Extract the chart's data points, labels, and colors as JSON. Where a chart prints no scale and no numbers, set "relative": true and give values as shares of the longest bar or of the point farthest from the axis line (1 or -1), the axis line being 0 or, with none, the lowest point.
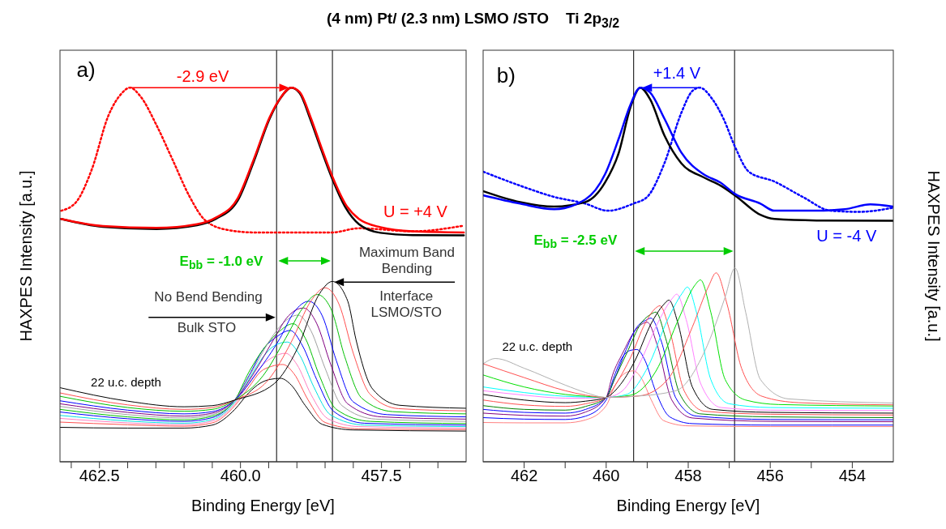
{
  "chart_data": [
    {
      "type": "line",
      "title": "(4 nm) Pt/ (2.3 nm) LSMO /STO    Ti 2p$_{3/2}$",
      "xlabel": "Binding Energy [eV]",
      "ylabel": "HAXPES Intensity [a.u.]",
      "relative": true,
      "tick_labels": "x",
      "xlim": [
        463.2,
        456.0
      ],
      "xticks": [
        {
          "value": 463.0,
          "label": null
        },
        {
          "value": 462.5,
          "label": "462.5"
        },
        {
          "value": 462.0,
          "label": null
        },
        {
          "value": 461.5,
          "label": null
        },
        {
          "value": 461.0,
          "label": null
        },
        {
          "value": 460.5,
          "label": null
        },
        {
          "value": 460.0,
          "label": "460.0"
        },
        {
          "value": 459.5,
          "label": null
        },
        {
          "value": 459.0,
          "label": null
        },
        {
          "value": 458.5,
          "label": null
        },
        {
          "value": 458.0,
          "label": null
        },
        {
          "value": 457.5,
          "label": "457.5"
        },
        {
          "value": 457.0,
          "label": null
        },
        {
          "value": 456.5,
          "label": null
        }
      ],
      "ref_lines": [
        {
          "axis": "x",
          "value": 459.36,
          "color": "#000000"
        },
        {
          "axis": "x",
          "value": 458.37,
          "color": "#000000"
        }
      ],
      "annotations": [
        "a)",
        "-2.9 eV",
        "U = +4 V",
        "E$_{bb}$ = -1.0 eV",
        "Maximum Band Bending",
        "Interface LSMO/STO",
        "No Bend Bending",
        "Bulk STO",
        "22 u.c. depth"
      ],
      "series": [
        {
          "color": "#ff0000",
          "x": [
            463.18,
            462.44,
            461.49,
            460.77,
            460.43,
            460.05,
            459.77,
            459.48,
            459.29,
            459.1,
            458.95,
            458.76,
            458.57,
            458.37,
            458.14,
            457.9,
            457.52,
            456.95,
            456.04
          ],
          "values": [
            0.649,
            0.63,
            0.625,
            0.635,
            0.653,
            0.704,
            0.806,
            0.922,
            0.973,
            1.0,
            0.988,
            0.922,
            0.842,
            0.762,
            0.689,
            0.649,
            0.627,
            0.616,
            0.613
          ]
        },
        {
          "color": "#000000",
          "x": [
            463.18,
            462.44,
            461.49,
            460.77,
            460.43,
            460.05,
            459.77,
            459.48,
            459.29,
            459.1,
            458.95,
            458.76,
            458.57,
            458.37,
            458.14,
            457.9,
            457.52,
            456.95,
            456.04
          ],
          "values": [
            0.649,
            0.628,
            0.622,
            0.632,
            0.65,
            0.698,
            0.8,
            0.918,
            0.972,
            1.0,
            0.985,
            0.915,
            0.835,
            0.755,
            0.68,
            0.635,
            0.612,
            0.606,
            0.605
          ]
        },
        {
          "color": "#ff0000",
          "line_style": "dotted",
          "x": [
            463.18,
            462.92,
            462.63,
            462.35,
            462.11,
            461.96,
            461.77,
            461.49,
            461.2,
            460.91,
            460.63,
            460.24,
            459.77,
            459.1,
            458.38,
            457.9,
            456.95,
            456.04
          ],
          "values": [
            0.671,
            0.693,
            0.784,
            0.922,
            0.984,
            1.0,
            0.976,
            0.9,
            0.806,
            0.711,
            0.646,
            0.62,
            0.613,
            0.613,
            0.613,
            0.624,
            0.616,
            0.631
          ]
        },
        {
          "color": "#000000",
          "x": [
            463.2,
            462,
            461,
            460.5,
            460.1,
            459.4,
            459.0,
            458.6,
            458.37,
            458.1,
            457.95,
            457.66,
            457.18,
            456.0
          ],
          "values": [
            0.198,
            0.162,
            0.147,
            0.15,
            0.165,
            0.209,
            0.3,
            0.449,
            0.482,
            0.43,
            0.325,
            0.195,
            0.151,
            0.143
          ]
        },
        {
          "color": "#ff5050",
          "x": [
            463.2,
            462,
            461,
            460.5,
            460.1,
            459.5,
            459.1,
            458.75,
            458.5,
            458.25,
            458.0,
            457.7,
            457.2,
            456.0
          ],
          "values": [
            0.184,
            0.152,
            0.14,
            0.145,
            0.165,
            0.22,
            0.32,
            0.43,
            0.465,
            0.42,
            0.29,
            0.18,
            0.142,
            0.136
          ]
        },
        {
          "color": "#00c000",
          "x": [
            463.2,
            462,
            461,
            460.5,
            460.1,
            459.6,
            459.2,
            458.9,
            458.64,
            458.4,
            458.15,
            457.85,
            457.3,
            456.0
          ],
          "values": [
            0.175,
            0.145,
            0.135,
            0.14,
            0.165,
            0.23,
            0.33,
            0.41,
            0.447,
            0.41,
            0.28,
            0.17,
            0.134,
            0.128
          ]
        },
        {
          "color": "#0000ff",
          "x": [
            463.2,
            462,
            461,
            460.5,
            460.1,
            459.7,
            459.3,
            459.05,
            458.79,
            458.55,
            458.3,
            458.0,
            457.4,
            456.0
          ],
          "values": [
            0.163,
            0.138,
            0.128,
            0.134,
            0.165,
            0.24,
            0.33,
            0.4,
            0.429,
            0.39,
            0.27,
            0.16,
            0.126,
            0.12
          ]
        },
        {
          "color": "#800080",
          "x": [
            463.2,
            462,
            461,
            460.5,
            460.1,
            459.75,
            459.4,
            459.15,
            458.88,
            458.65,
            458.4,
            458.1,
            457.5,
            456.0
          ],
          "values": [
            0.155,
            0.132,
            0.122,
            0.13,
            0.165,
            0.24,
            0.33,
            0.39,
            0.411,
            0.37,
            0.26,
            0.155,
            0.12,
            0.114
          ]
        },
        {
          "color": "#a0a0a0",
          "x": [
            463.2,
            462,
            461,
            460.5,
            460.1,
            459.8,
            459.5,
            459.25,
            458.98,
            458.75,
            458.5,
            458.2,
            457.6,
            456.0
          ],
          "values": [
            0.148,
            0.126,
            0.117,
            0.126,
            0.165,
            0.24,
            0.32,
            0.37,
            0.392,
            0.35,
            0.25,
            0.15,
            0.114,
            0.108
          ]
        },
        {
          "color": "#00c000",
          "x": [
            463.2,
            462,
            461,
            460.5,
            460.1,
            459.85,
            459.55,
            459.3,
            459.07,
            458.85,
            458.6,
            458.3,
            457.7,
            456.0
          ],
          "values": [
            0.14,
            0.12,
            0.112,
            0.122,
            0.165,
            0.24,
            0.31,
            0.35,
            0.369,
            0.33,
            0.23,
            0.14,
            0.108,
            0.102
          ]
        },
        {
          "color": "#0000ff",
          "x": [
            463.2,
            462,
            461,
            460.5,
            460.1,
            459.85,
            459.6,
            459.35,
            459.12,
            458.9,
            458.65,
            458.35,
            457.8,
            456.0
          ],
          "values": [
            0.133,
            0.115,
            0.108,
            0.118,
            0.165,
            0.23,
            0.3,
            0.335,
            0.351,
            0.31,
            0.22,
            0.135,
            0.103,
            0.098
          ]
        },
        {
          "color": "#00e0e0",
          "x": [
            463.2,
            462,
            461,
            460.5,
            460.1,
            459.85,
            459.6,
            459.4,
            459.17,
            458.95,
            458.7,
            458.4,
            457.8,
            456.0
          ],
          "values": [
            0.124,
            0.109,
            0.103,
            0.113,
            0.16,
            0.22,
            0.28,
            0.31,
            0.32,
            0.285,
            0.2,
            0.125,
            0.098,
            0.094
          ]
        },
        {
          "color": "#ff80c0",
          "x": [
            463.2,
            462,
            461,
            460.5,
            460.1,
            459.85,
            459.6,
            459.42,
            459.2,
            459.0,
            458.75,
            458.45,
            457.9,
            456.0
          ],
          "values": [
            0.116,
            0.104,
            0.099,
            0.109,
            0.155,
            0.21,
            0.26,
            0.28,
            0.29,
            0.26,
            0.18,
            0.115,
            0.094,
            0.09
          ]
        },
        {
          "color": "#ff5050",
          "x": [
            463.2,
            462,
            461,
            460.5,
            460.1,
            459.85,
            459.65,
            459.45,
            459.25,
            459.05,
            458.8,
            458.5,
            457.9,
            456.0
          ],
          "values": [
            0.106,
            0.099,
            0.095,
            0.104,
            0.15,
            0.2,
            0.24,
            0.255,
            0.26,
            0.235,
            0.165,
            0.105,
            0.088,
            0.086
          ]
        },
        {
          "color": "#000000",
          "x": [
            463.2,
            462,
            461,
            460.5,
            460.1,
            459.85,
            459.65,
            459.48,
            459.29,
            459.1,
            458.85,
            458.55,
            458.0,
            456.0
          ],
          "values": [
            0.092,
            0.09,
            0.09,
            0.098,
            0.14,
            0.185,
            0.21,
            0.22,
            0.223,
            0.205,
            0.15,
            0.1,
            0.085,
            0.082
          ]
        }
      ]
    },
    {
      "type": "line",
      "xlabel": "Binding Energy [eV]",
      "ylabel": "HAXPES Intensity [a.u.]",
      "relative": true,
      "tick_labels": "x",
      "xlim": [
        463.0,
        453.0
      ],
      "xticks": [
        {
          "value": 462,
          "label": "462"
        },
        {
          "value": 461,
          "label": null
        },
        {
          "value": 460,
          "label": "460"
        },
        {
          "value": 459,
          "label": null
        },
        {
          "value": 458,
          "label": "458"
        },
        {
          "value": 457,
          "label": null
        },
        {
          "value": 456,
          "label": "456"
        },
        {
          "value": 455,
          "label": null
        },
        {
          "value": 454,
          "label": "454"
        }
      ],
      "ref_lines": [
        {
          "axis": "x",
          "value": 459.33,
          "color": "#000000"
        },
        {
          "axis": "x",
          "value": 456.87,
          "color": "#000000"
        }
      ],
      "annotations": [
        "b)",
        "+1.4 V",
        "U = -4 V",
        "E$_{bb}$ = -2.5 eV",
        "22 u.c. depth"
      ],
      "series": [
        {
          "color": "#0000ff",
          "x": [
            462.99,
            462.1,
            461.27,
            460.51,
            460.03,
            459.69,
            459.41,
            459.17,
            458.93,
            458.58,
            458.17,
            457.62,
            457.21,
            456.86,
            456.24,
            455.9,
            454.87,
            454.18,
            453.56,
            453.01
          ],
          "values": [
            0.712,
            0.69,
            0.675,
            0.701,
            0.768,
            0.865,
            0.954,
            1.0,
            0.987,
            0.917,
            0.827,
            0.768,
            0.746,
            0.716,
            0.69,
            0.671,
            0.671,
            0.675,
            0.688,
            0.682
          ]
        },
        {
          "color": "#000000",
          "x": [
            462.99,
            462.1,
            461.27,
            460.51,
            460.03,
            459.69,
            459.41,
            459.17,
            458.93,
            458.58,
            458.17,
            457.62,
            457.21,
            456.86,
            456.24,
            455.9,
            454.87,
            453.01
          ],
          "values": [
            0.723,
            0.694,
            0.682,
            0.694,
            0.746,
            0.827,
            0.947,
            1.0,
            0.969,
            0.872,
            0.798,
            0.76,
            0.738,
            0.712,
            0.66,
            0.649,
            0.645,
            0.644
          ]
        },
        {
          "color": "#0000ff",
          "line_style": "dotted",
          "x": [
            462.99,
            462.1,
            461.27,
            460.51,
            459.96,
            459.34,
            459.0,
            458.58,
            458.17,
            457.9,
            457.72,
            457.41,
            457.14,
            456.86,
            456.52,
            455.9,
            455.21,
            454.52,
            453.83,
            453.01
          ],
          "values": [
            0.775,
            0.738,
            0.708,
            0.69,
            0.671,
            0.69,
            0.708,
            0.798,
            0.932,
            0.991,
            1.0,
            0.969,
            0.917,
            0.842,
            0.775,
            0.749,
            0.708,
            0.671,
            0.668,
            0.679
          ]
        },
        {
          "color": "#b0b0b0",
          "x": [
            463,
            462.7,
            462,
            461,
            460.5,
            460,
            459.3,
            458.3,
            457.6,
            457.1,
            456.86,
            456.6,
            456.24,
            455.55,
            453
          ],
          "values": [
            0.262,
            0.276,
            0.25,
            0.205,
            0.185,
            0.172,
            0.175,
            0.19,
            0.295,
            0.44,
            0.518,
            0.4,
            0.22,
            0.168,
            0.157
          ]
        },
        {
          "color": "#ff5050",
          "x": [
            463,
            462,
            461,
            460.5,
            460,
            459.2,
            458.5,
            457.9,
            457.5,
            457.32,
            457.05,
            456.7,
            456.2,
            455.3,
            453
          ],
          "values": [
            0.262,
            0.225,
            0.19,
            0.178,
            0.172,
            0.176,
            0.22,
            0.36,
            0.47,
            0.505,
            0.42,
            0.25,
            0.175,
            0.158,
            0.152
          ]
        },
        {
          "color": "#00e000",
          "x": [
            463,
            462,
            461,
            460.5,
            460,
            459.4,
            458.8,
            458.2,
            457.85,
            457.7,
            457.45,
            457.1,
            456.6,
            455.8,
            453
          ],
          "values": [
            0.232,
            0.2,
            0.18,
            0.175,
            0.172,
            0.178,
            0.24,
            0.39,
            0.47,
            0.486,
            0.4,
            0.22,
            0.165,
            0.153,
            0.149
          ]
        },
        {
          "color": "#00ffff",
          "x": [
            463,
            462,
            461,
            460.5,
            460,
            459.5,
            459.0,
            458.5,
            458.15,
            458.02,
            457.8,
            457.45,
            457.0,
            456.0,
            453
          ],
          "values": [
            0.2,
            0.185,
            0.175,
            0.173,
            0.172,
            0.18,
            0.25,
            0.38,
            0.45,
            0.467,
            0.4,
            0.22,
            0.155,
            0.145,
            0.143
          ]
        },
        {
          "color": "#ff80ff",
          "x": [
            463,
            462,
            461,
            460.5,
            460,
            459.6,
            459.2,
            458.7,
            458.4,
            458.28,
            458.05,
            457.7,
            457.2,
            456.0,
            453
          ],
          "values": [
            0.19,
            0.178,
            0.17,
            0.17,
            0.172,
            0.19,
            0.26,
            0.38,
            0.435,
            0.448,
            0.38,
            0.21,
            0.145,
            0.138,
            0.137
          ]
        },
        {
          "color": "#000000",
          "x": [
            463,
            462,
            461,
            460.5,
            460,
            459.7,
            459.3,
            458.9,
            458.6,
            458.47,
            458.25,
            457.9,
            457.4,
            456.0,
            453
          ],
          "values": [
            0.18,
            0.165,
            0.158,
            0.162,
            0.172,
            0.2,
            0.27,
            0.37,
            0.42,
            0.432,
            0.37,
            0.2,
            0.14,
            0.132,
            0.13
          ]
        },
        {
          "color": "#ff5050",
          "x": [
            463,
            462,
            461,
            460.5,
            460,
            459.75,
            459.4,
            459.05,
            458.8,
            458.69,
            458.45,
            458.1,
            457.6,
            456,
            453
          ],
          "values": [
            0.165,
            0.152,
            0.148,
            0.155,
            0.172,
            0.21,
            0.28,
            0.37,
            0.41,
            0.417,
            0.35,
            0.19,
            0.135,
            0.127,
            0.125
          ]
        },
        {
          "color": "#008000",
          "x": [
            463,
            462,
            461,
            460.5,
            460,
            459.8,
            459.5,
            459.15,
            458.9,
            458.79,
            458.55,
            458.2,
            457.7,
            456,
            453
          ],
          "values": [
            0.15,
            0.14,
            0.138,
            0.148,
            0.172,
            0.22,
            0.29,
            0.37,
            0.395,
            0.4,
            0.33,
            0.18,
            0.128,
            0.12,
            0.118
          ]
        },
        {
          "color": "#0000ff",
          "x": [
            463,
            462,
            461,
            460.5,
            460,
            459.8,
            459.55,
            459.25,
            459.0,
            458.91,
            458.65,
            458.3,
            457.8,
            456,
            453
          ],
          "values": [
            0.14,
            0.132,
            0.13,
            0.14,
            0.172,
            0.22,
            0.29,
            0.36,
            0.38,
            0.384,
            0.32,
            0.17,
            0.122,
            0.113,
            0.112
          ]
        },
        {
          "color": "#800080",
          "x": [
            463,
            462,
            461,
            460.5,
            460,
            459.85,
            459.6,
            459.3,
            459.1,
            459.0,
            458.75,
            458.4,
            457.9,
            456,
            453
          ],
          "values": [
            0.13,
            0.124,
            0.122,
            0.133,
            0.172,
            0.23,
            0.29,
            0.35,
            0.37,
            0.373,
            0.31,
            0.165,
            0.117,
            0.108,
            0.107
          ]
        },
        {
          "color": "#0000ff",
          "x": [
            463,
            462,
            461,
            460.5,
            460,
            459.8,
            459.6,
            459.4,
            459.25,
            459.05,
            458.8,
            458.45,
            457.9,
            456,
            453
          ],
          "values": [
            0.118,
            0.114,
            0.113,
            0.122,
            0.165,
            0.23,
            0.28,
            0.298,
            0.3,
            0.27,
            0.19,
            0.12,
            0.102,
            0.098,
            0.098
          ]
        },
        {
          "color": "#ff8080",
          "x": [
            463,
            462,
            461,
            460.5,
            460,
            459.8,
            459.6,
            459.45,
            459.34,
            459.15,
            458.9,
            458.6,
            458.0,
            456,
            453
          ],
          "values": [
            0.105,
            0.104,
            0.104,
            0.112,
            0.15,
            0.2,
            0.232,
            0.241,
            0.243,
            0.225,
            0.165,
            0.11,
            0.096,
            0.094,
            0.094
          ]
        }
      ]
    }
  ]
}
